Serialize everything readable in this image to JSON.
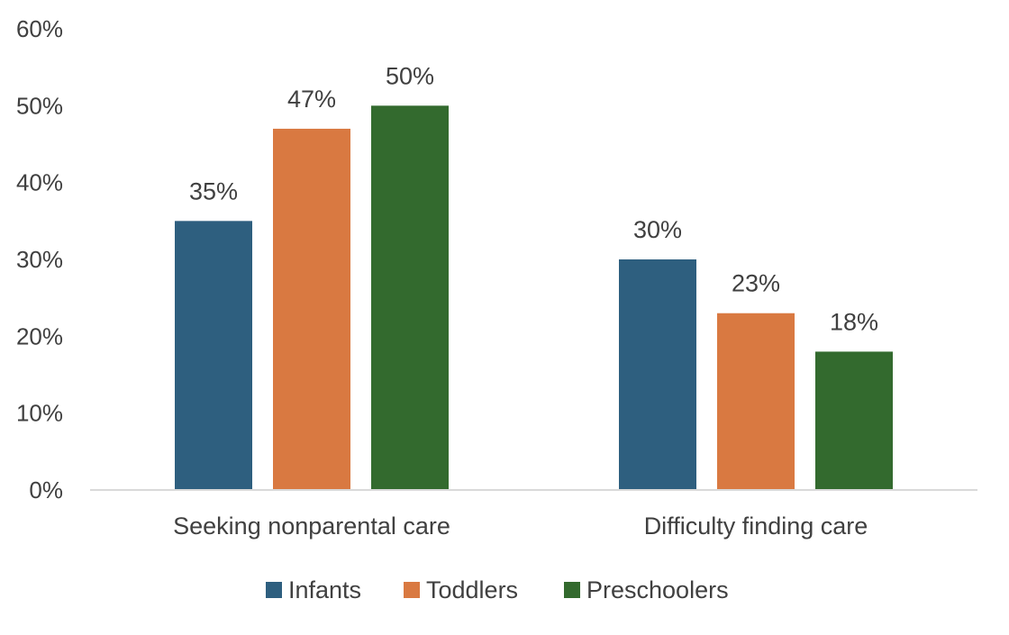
{
  "chart_data": {
    "type": "bar",
    "categories": [
      "Seeking nonparental care",
      "Difficulty finding care"
    ],
    "series": [
      {
        "name": "Infants",
        "values": [
          35,
          30
        ],
        "color": "#2e5f7f"
      },
      {
        "name": "Toddlers",
        "values": [
          47,
          23
        ],
        "color": "#d97941"
      },
      {
        "name": "Preschoolers",
        "values": [
          50,
          18
        ],
        "color": "#336a2e"
      }
    ],
    "value_suffix": "%",
    "ylim": [
      0,
      60
    ],
    "yticks": [
      "0%",
      "10%",
      "20%",
      "30%",
      "40%",
      "50%",
      "60%"
    ],
    "grid": false,
    "legend": "bottom",
    "axis_color": "#d9d9d9"
  }
}
